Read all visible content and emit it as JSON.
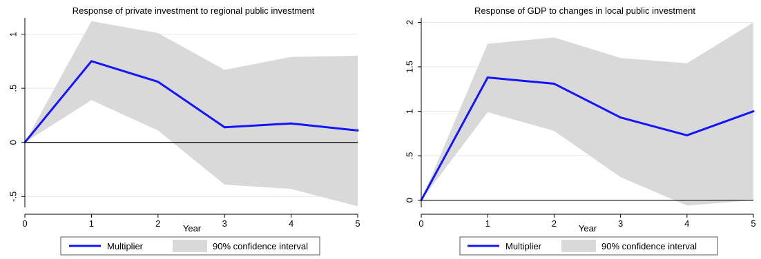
{
  "chart_data": [
    {
      "type": "line",
      "title": "Response of private investment to regional public investment",
      "xlabel": "Year",
      "ylabel": "",
      "xlim": [
        0,
        5
      ],
      "ylim": [
        -0.6,
        1.15
      ],
      "x_ticks": [
        0,
        1,
        2,
        3,
        4,
        5
      ],
      "x_tick_labels": [
        "0",
        "1",
        "2",
        "3",
        "4",
        "5"
      ],
      "y_ticks": [
        -0.5,
        0,
        0.5,
        1
      ],
      "y_tick_labels": [
        "-.5",
        "0",
        ".5",
        "1"
      ],
      "grid": true,
      "reference_line": 0,
      "legend_position": "bottom",
      "series": [
        {
          "name": "Multiplier",
          "color": "#1414ff",
          "x": [
            0,
            1,
            2,
            3,
            4,
            5
          ],
          "values": [
            0,
            0.75,
            0.56,
            0.14,
            0.175,
            0.11
          ]
        }
      ],
      "band": {
        "name": "90% confidence interval",
        "color": "#d9d9d9",
        "x": [
          0,
          1,
          2,
          3,
          4,
          5
        ],
        "lower": [
          0,
          0.39,
          0.11,
          -0.39,
          -0.43,
          -0.59
        ],
        "upper": [
          0,
          1.12,
          1.01,
          0.67,
          0.79,
          0.8
        ]
      }
    },
    {
      "type": "line",
      "title": "Response of GDP to changes in local public investment",
      "xlabel": "Year",
      "ylabel": "",
      "xlim": [
        0,
        5
      ],
      "ylim": [
        -0.08,
        2.05
      ],
      "x_ticks": [
        0,
        1,
        2,
        3,
        4,
        5
      ],
      "x_tick_labels": [
        "0",
        "1",
        "2",
        "3",
        "4",
        "5"
      ],
      "y_ticks": [
        0,
        0.5,
        1,
        1.5,
        2
      ],
      "y_tick_labels": [
        "0",
        ".5",
        "1",
        "1.5",
        "2"
      ],
      "grid": true,
      "reference_line": 0,
      "legend_position": "bottom",
      "series": [
        {
          "name": "Multiplier",
          "color": "#1414ff",
          "x": [
            0,
            1,
            2,
            3,
            4,
            5
          ],
          "values": [
            0,
            1.38,
            1.31,
            0.93,
            0.73,
            1.0
          ]
        }
      ],
      "band": {
        "name": "90% confidence interval",
        "color": "#d9d9d9",
        "x": [
          0,
          1,
          2,
          3,
          4,
          5
        ],
        "lower": [
          0,
          0.99,
          0.78,
          0.26,
          -0.06,
          0.0
        ],
        "upper": [
          0,
          1.76,
          1.83,
          1.6,
          1.54,
          2.0
        ]
      }
    }
  ]
}
